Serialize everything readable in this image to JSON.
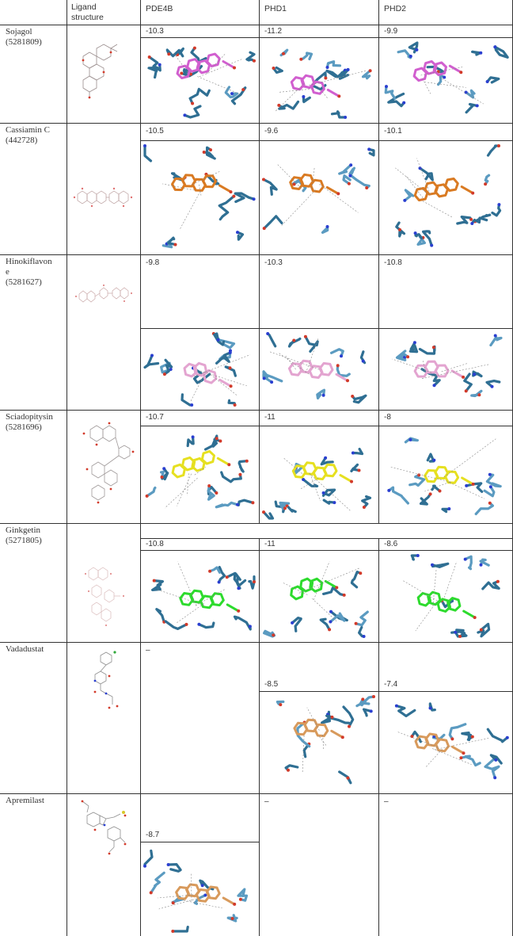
{
  "header": {
    "ligand_structure": "Ligand\nstructure",
    "col1": "PDE4B",
    "col2": "PHD1",
    "col3": "PHD2"
  },
  "rows": [
    {
      "name": "Sojagol\n(5281809)",
      "scores": [
        "-10.3",
        "-11.2",
        "-9.9"
      ],
      "ligand_color": "#d15fcf"
    },
    {
      "name": "Cassiamin C\n(442728)",
      "scores": [
        "-10.5",
        "-9.6",
        "-10.1"
      ],
      "ligand_color": "#d97a22"
    },
    {
      "name": "Hinokiflavon\ne\n(5281627)",
      "scores": [
        "-9.8",
        "-10.3",
        "-10.8"
      ],
      "ligand_color": "#e3a4d0"
    },
    {
      "name": "Sciadopitysin\n(5281696)",
      "scores": [
        "-10.7",
        "-11",
        "-8"
      ],
      "ligand_color": "#e6e020"
    },
    {
      "name": "Ginkgetin\n(5271805)",
      "scores": [
        "-10.8",
        "-11",
        "-8.6"
      ],
      "ligand_color": "#2ddb2d"
    },
    {
      "name": "Vadadustat",
      "scores": [
        "–",
        "-8.5",
        "-7.4"
      ],
      "ligand_color": "#d89a5c"
    },
    {
      "name": "Apremilast",
      "scores": [
        "-8.7",
        "–",
        "–"
      ],
      "ligand_color": "#d89a5c"
    }
  ],
  "colors": {
    "residue": "#2f6f93",
    "residue_light": "#5b9bc1",
    "oxygen": "#d23a2a",
    "nitrogen": "#2a3fd0",
    "grid": "#333333"
  }
}
